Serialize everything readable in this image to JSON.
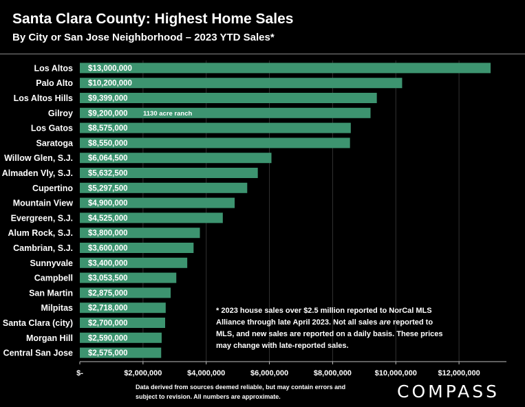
{
  "header": {
    "title": "Santa Clara County: Highest Home Sales",
    "subtitle": "By City or San Jose Neighborhood – 2023 YTD Sales*"
  },
  "footnote": "* 2023 house sales over $2.5 million reported to NorCal MLS Alliance through late April 2023. Not all sales are reported to MLS, and new sales are reported on a daily basis. These prices may change with late-reported sales.",
  "footnote_italic_word": "are",
  "source_note": "Data derived from sources deemed reliable, but may contain errors and subject to revision. All numbers are approximate.",
  "logo": "COMPASS",
  "colors": {
    "bar": "#3d9470",
    "background": "#000000",
    "text": "#ffffff",
    "axis": "#bfbfbf",
    "grid": "#333333"
  },
  "chart_data": {
    "type": "bar",
    "orientation": "horizontal",
    "title": "Santa Clara County: Highest Home Sales",
    "subtitle": "By City or San Jose Neighborhood – 2023 YTD Sales*",
    "categories": [
      "Los Altos",
      "Palo Alto",
      "Los Altos Hills",
      "Gilroy",
      "Los Gatos",
      "Saratoga",
      "Willow Glen, S.J.",
      "Almaden Vly, S.J.",
      "Cupertino",
      "Mountain View",
      "Evergreen, S.J.",
      "Alum Rock, S.J.",
      "Cambrian, S.J.",
      "Sunnyvale",
      "Campbell",
      "San Martin",
      "Milpitas",
      "Santa Clara (city)",
      "Morgan Hill",
      "Central San Jose"
    ],
    "values": [
      13000000,
      10200000,
      9399000,
      9200000,
      8575000,
      8550000,
      6064500,
      5632500,
      5297500,
      4900000,
      4525000,
      3800000,
      3600000,
      3400000,
      3053500,
      2875000,
      2718000,
      2700000,
      2590000,
      2575000
    ],
    "value_labels": [
      "$13,000,000",
      "$10,200,000",
      "$9,399,000",
      "$9,200,000",
      "$8,575,000",
      "$8,550,000",
      "$6,064,500",
      "$5,632,500",
      "$5,297,500",
      "$4,900,000",
      "$4,525,000",
      "$3,800,000",
      "$3,600,000",
      "$3,400,000",
      "$3,053,500",
      "$2,875,000",
      "$2,718,000",
      "$2,700,000",
      "$2,590,000",
      "$2,575,000"
    ],
    "annotations": [
      {
        "category": "Gilroy",
        "text": "1130 acre ranch"
      }
    ],
    "xlim": [
      0,
      13500000
    ],
    "x_ticks": [
      0,
      2000000,
      4000000,
      6000000,
      8000000,
      10000000,
      12000000
    ],
    "x_tick_labels": [
      "$-",
      "$2,000,000",
      "$4,000,000",
      "$6,000,000",
      "$8,000,000",
      "$10,000,000",
      "$12,000,000"
    ],
    "xlabel": "",
    "ylabel": "",
    "grid": true,
    "legend": "none"
  }
}
